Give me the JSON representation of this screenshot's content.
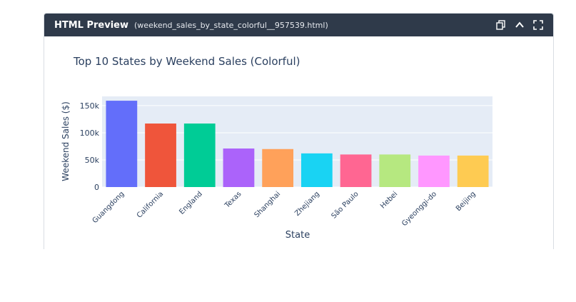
{
  "header": {
    "title": "HTML Preview",
    "filename": "(weekend_sales_by_state_colorful__957539.html)"
  },
  "chart_data": {
    "type": "bar",
    "title": "Top 10 States by Weekend Sales (Colorful)",
    "x_label": "State",
    "y_label": "Weekend Sales ($)",
    "categories": [
      "Guangdong",
      "California",
      "England",
      "Texas",
      "Shanghai",
      "Zhejiang",
      "São Paulo",
      "Hebei",
      "Gyeonggi-do",
      "Beijing"
    ],
    "values": [
      159000,
      117000,
      117000,
      71000,
      70000,
      62000,
      60000,
      60000,
      58000,
      58000
    ],
    "colors": [
      "#636efa",
      "#ef553b",
      "#00cc96",
      "#ab63fa",
      "#ffa15a",
      "#19d3f3",
      "#ff6692",
      "#b6e880",
      "#ff97ff",
      "#fecb52"
    ],
    "ylim": [
      0,
      167000
    ],
    "yticks": [
      0,
      {
        "value": 50000,
        "label": "50k"
      },
      {
        "value": 100000,
        "label": "100k"
      },
      {
        "value": 150000,
        "label": "150k"
      }
    ],
    "grid": true
  }
}
